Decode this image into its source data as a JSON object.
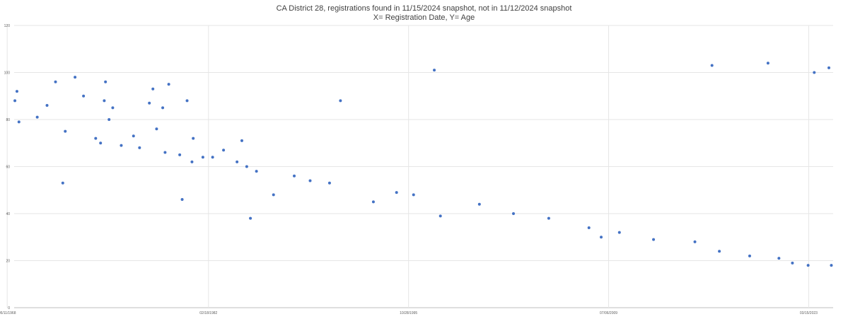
{
  "chart_data": {
    "type": "scatter",
    "title": "CA District  28, registrations  found in 11/15/2024 snapshot,  not in 11/12/2024 snapshot",
    "subtitle": "X= Registration Date, Y= Age",
    "xlabel": "",
    "ylabel": "",
    "x_axis_type": "date",
    "xlim": [
      "1968-11-01",
      "2024-11-15"
    ],
    "ylim": [
      0,
      120
    ],
    "x_ticks": [
      "05/11/1968",
      "02/18/1982",
      "10/28/1995",
      "07/06/2009",
      "03/15/2023"
    ],
    "y_ticks": [
      0,
      20,
      40,
      60,
      80,
      100,
      120
    ],
    "grid": true,
    "legend": "none",
    "marker_color": "#4472c4",
    "series": [
      {
        "points": [
          [
            "1968-11-20",
            88
          ],
          [
            "1969-01-10",
            92
          ],
          [
            "1969-03-01",
            79
          ],
          [
            "1970-06-01",
            81
          ],
          [
            "1971-02-01",
            86
          ],
          [
            "1971-09-01",
            96
          ],
          [
            "1972-03-01",
            53
          ],
          [
            "1972-05-01",
            75
          ],
          [
            "1973-01-01",
            98
          ],
          [
            "1973-08-01",
            90
          ],
          [
            "1974-06-01",
            72
          ],
          [
            "1974-10-01",
            70
          ],
          [
            "1975-01-01",
            88
          ],
          [
            "1975-02-01",
            96
          ],
          [
            "1975-05-01",
            80
          ],
          [
            "1975-08-01",
            85
          ],
          [
            "1976-03-01",
            69
          ],
          [
            "1977-01-01",
            73
          ],
          [
            "1977-06-01",
            68
          ],
          [
            "1978-02-01",
            87
          ],
          [
            "1978-05-01",
            93
          ],
          [
            "1978-08-01",
            76
          ],
          [
            "1979-01-01",
            85
          ],
          [
            "1979-03-01",
            66
          ],
          [
            "1979-06-01",
            95
          ],
          [
            "1980-03-01",
            65
          ],
          [
            "1980-05-01",
            46
          ],
          [
            "1980-09-01",
            88
          ],
          [
            "1981-01-01",
            62
          ],
          [
            "1981-02-01",
            72
          ],
          [
            "1981-10-01",
            64
          ],
          [
            "1982-06-01",
            64
          ],
          [
            "1983-03-01",
            67
          ],
          [
            "1984-02-01",
            62
          ],
          [
            "1984-06-01",
            71
          ],
          [
            "1984-10-01",
            60
          ],
          [
            "1985-01-01",
            38
          ],
          [
            "1985-06-01",
            58
          ],
          [
            "1986-08-01",
            48
          ],
          [
            "1988-01-01",
            56
          ],
          [
            "1989-02-01",
            54
          ],
          [
            "1990-06-01",
            53
          ],
          [
            "1991-03-01",
            88
          ],
          [
            "1993-06-01",
            45
          ],
          [
            "1995-01-01",
            49
          ],
          [
            "1996-03-01",
            48
          ],
          [
            "1997-08-01",
            101
          ],
          [
            "1998-01-01",
            39
          ],
          [
            "2000-09-01",
            44
          ],
          [
            "2003-01-01",
            40
          ],
          [
            "2005-06-01",
            38
          ],
          [
            "2008-03-01",
            34
          ],
          [
            "2009-01-01",
            30
          ],
          [
            "2010-04-01",
            32
          ],
          [
            "2012-08-01",
            29
          ],
          [
            "2015-06-01",
            28
          ],
          [
            "2016-08-01",
            103
          ],
          [
            "2017-02-01",
            24
          ],
          [
            "2019-03-01",
            22
          ],
          [
            "2020-06-01",
            104
          ],
          [
            "2021-03-01",
            21
          ],
          [
            "2022-02-01",
            19
          ],
          [
            "2023-03-01",
            18
          ],
          [
            "2023-08-01",
            100
          ],
          [
            "2024-08-01",
            102
          ],
          [
            "2024-10-01",
            18
          ]
        ]
      }
    ]
  }
}
